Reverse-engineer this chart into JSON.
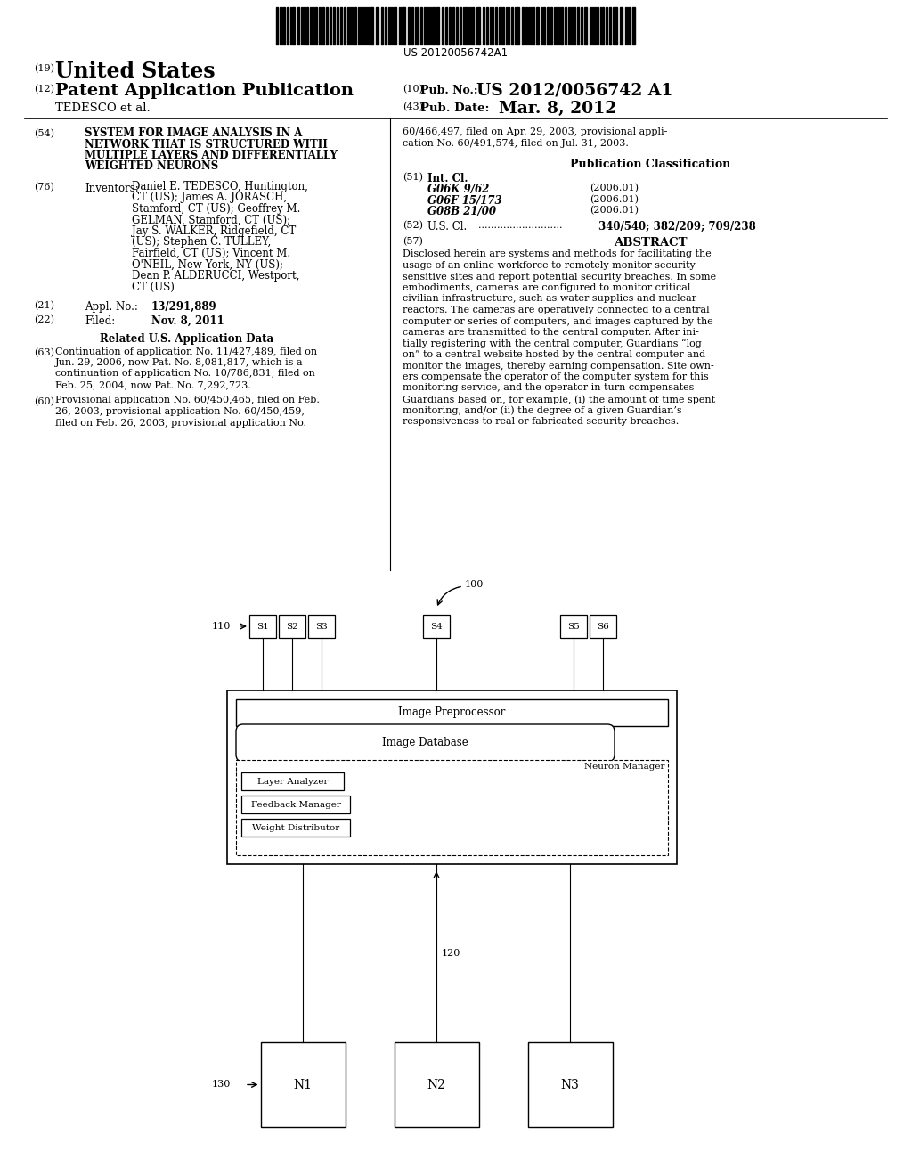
{
  "background_color": "#ffffff",
  "barcode_text": "US 20120056742A1",
  "header": {
    "line1_num": "(19)",
    "line1_text": "United States",
    "line2_num": "(12)",
    "line2_text": "Patent Application Publication",
    "line2_right_label1": "(10)",
    "line2_right_text1": "Pub. No.:",
    "line2_right_val1": "US 2012/0056742 A1",
    "line3_left": "TEDESCO et al.",
    "line3_right_label": "(43)",
    "line3_right_text": "Pub. Date:",
    "line3_right_val": "Mar. 8, 2012"
  },
  "left_col": {
    "title_num": "(54)",
    "title_lines": [
      "SYSTEM FOR IMAGE ANALYSIS IN A",
      "NETWORK THAT IS STRUCTURED WITH",
      "MULTIPLE LAYERS AND DIFFERENTIALLY",
      "WEIGHTED NEURONS"
    ],
    "inventors_num": "(76)",
    "inventors_label": "Inventors:",
    "inventors_lines": [
      "Daniel E. TEDESCO, Huntington,",
      "CT (US); James A. JORASCH,",
      "Stamford, CT (US); Geoffrey M.",
      "GELMAN, Stamford, CT (US);",
      "Jay S. WALKER, Ridgefield, CT",
      "(US); Stephen C. TULLEY,",
      "Fairfield, CT (US); Vincent M.",
      "O'NEIL, New York, NY (US);",
      "Dean P. ALDERUCCI, Westport,",
      "CT (US)"
    ],
    "appl_num": "(21)",
    "appl_label": "Appl. No.:",
    "appl_val": "13/291,889",
    "filed_num": "(22)",
    "filed_label": "Filed:",
    "filed_val": "Nov. 8, 2011",
    "related_header": "Related U.S. Application Data",
    "cont_num": "(63)",
    "cont_lines": [
      "Continuation of application No. 11/427,489, filed on",
      "Jun. 29, 2006, now Pat. No. 8,081,817, which is a",
      "continuation of application No. 10/786,831, filed on",
      "Feb. 25, 2004, now Pat. No. 7,292,723."
    ],
    "prov_num": "(60)",
    "prov_lines": [
      "Provisional application No. 60/450,465, filed on Feb.",
      "26, 2003, provisional application No. 60/450,459,",
      "filed on Feb. 26, 2003, provisional application No."
    ]
  },
  "right_col": {
    "cont_lines_right": [
      "60/466,497, filed on Apr. 29, 2003, provisional appli-",
      "cation No. 60/491,574, filed on Jul. 31, 2003."
    ],
    "pub_class_header": "Publication Classification",
    "int_cl_num": "(51)",
    "int_cl_label": "Int. Cl.",
    "int_cl_entries": [
      [
        "G06K 9/62",
        "(2006.01)"
      ],
      [
        "G06F 15/173",
        "(2006.01)"
      ],
      [
        "G08B 21/00",
        "(2006.01)"
      ]
    ],
    "us_cl_num": "(52)",
    "us_cl_label": "U.S. Cl.",
    "us_cl_dots": "...........................",
    "us_cl_val": "340/540; 382/209; 709/238",
    "abstract_num": "(57)",
    "abstract_header": "ABSTRACT",
    "abstract_lines": [
      "Disclosed herein are systems and methods for facilitating the",
      "usage of an online workforce to remotely monitor security-",
      "sensitive sites and report potential security breaches. In some",
      "embodiments, cameras are configured to monitor critical",
      "civilian infrastructure, such as water supplies and nuclear",
      "reactors. The cameras are operatively connected to a central",
      "computer or series of computers, and images captured by the",
      "cameras are transmitted to the central computer. After ini-",
      "tially registering with the central computer, Guardians “log",
      "on” to a central website hosted by the central computer and",
      "monitor the images, thereby earning compensation. Site own-",
      "ers compensate the operator of the computer system for this",
      "monitoring service, and the operator in turn compensates",
      "Guardians based on, for example, (i) the amount of time spent",
      "monitoring, and/or (ii) the degree of a given Guardian’s",
      "responsiveness to real or fabricated security breaches."
    ]
  },
  "diagram": {
    "label_100": "100",
    "label_110": "110",
    "label_120": "120",
    "label_130": "130",
    "sensors_top": [
      "S1",
      "S2",
      "S3",
      "S4",
      "S5",
      "S6"
    ],
    "neurons_bottom": [
      "N1",
      "N2",
      "N3"
    ],
    "box_labels": {
      "image_preprocessor": "Image Preprocessor",
      "image_database": "Image Database",
      "neuron_manager": "Neuron Manager",
      "layer_analyzer": "Layer Analyzer",
      "feedback_manager": "Feedback Manager",
      "weight_distributor": "Weight Distributor"
    }
  }
}
